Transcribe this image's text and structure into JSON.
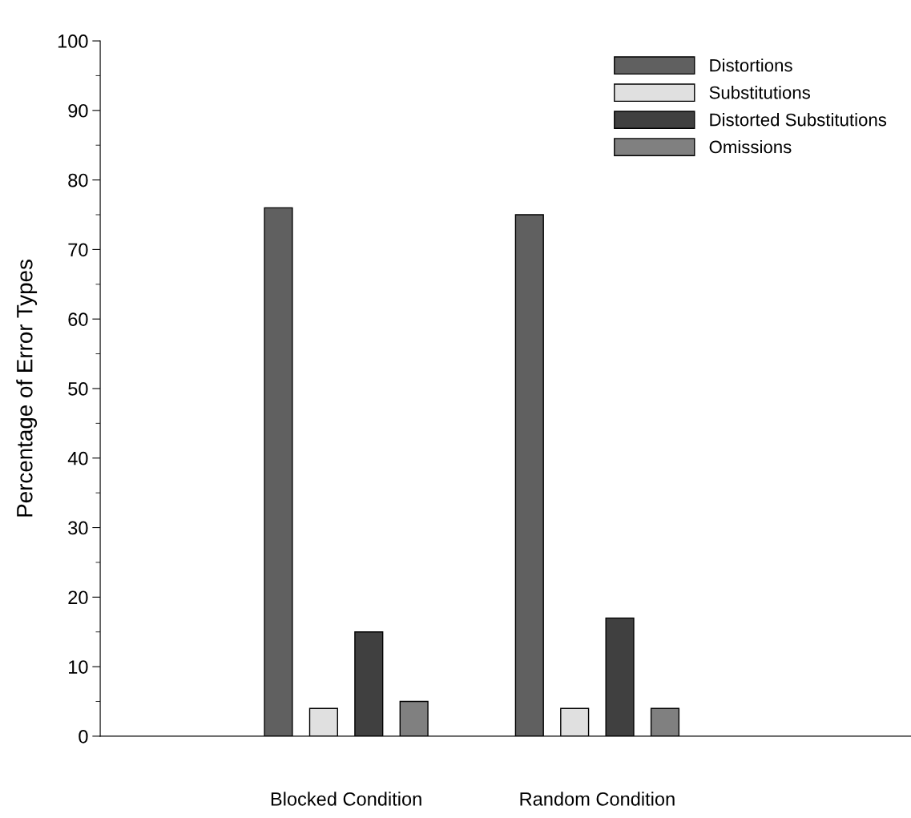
{
  "chart_data": {
    "type": "bar",
    "ylabel": "Percentage of Error Types",
    "categories": [
      "Blocked Condition",
      "Random Condition"
    ],
    "series": [
      {
        "name": "Distortions",
        "color": "#606060",
        "values": [
          76,
          75
        ]
      },
      {
        "name": "Substitutions",
        "color": "#e0e0e0",
        "values": [
          4,
          4
        ]
      },
      {
        "name": "Distorted Substitutions",
        "color": "#404040",
        "values": [
          15,
          17
        ]
      },
      {
        "name": "Omissions",
        "color": "#808080",
        "values": [
          5,
          4
        ]
      }
    ],
    "ylim": [
      0,
      100
    ],
    "yticks": [
      0,
      10,
      20,
      30,
      40,
      50,
      60,
      70,
      80,
      90,
      100
    ],
    "legend": "top right",
    "grid": false
  }
}
